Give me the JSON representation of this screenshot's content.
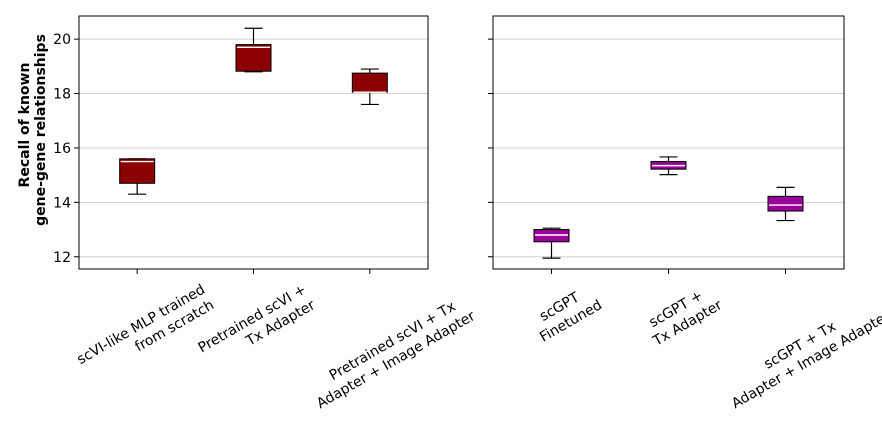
{
  "chart_data": [
    {
      "type": "box",
      "ylabel": [
        "Recall of known",
        "gene-gene relationships"
      ],
      "ylim": [
        11.55,
        20.85
      ],
      "yticks": [
        12,
        14,
        16,
        18,
        20
      ],
      "grid": "y",
      "box_color": "#8b0000",
      "median_color": "#ffffff",
      "categories": [
        [
          "scVI-like MLP trained",
          "from scratch"
        ],
        [
          "Pretrained scVI +",
          "Tx Adapter"
        ],
        [
          "Pretrained scVI + Tx",
          "Adapter + Image Adapter"
        ]
      ],
      "boxes": [
        {
          "whislo": 14.3,
          "q1": 14.7,
          "med": 15.5,
          "q3": 15.6,
          "whishi": 15.6
        },
        {
          "whislo": 18.8,
          "q1": 18.82,
          "med": 19.7,
          "q3": 19.8,
          "whishi": 20.4
        },
        {
          "whislo": 17.6,
          "q1": 18.05,
          "med": 18.05,
          "q3": 18.75,
          "whishi": 18.9
        }
      ]
    },
    {
      "type": "box",
      "ylim": [
        11.55,
        20.85
      ],
      "yticks": [
        12,
        14,
        16,
        18,
        20
      ],
      "grid": "y",
      "box_color": "#990099",
      "median_color": "#ffffff",
      "categories": [
        [
          "scGPT",
          "Finetuned"
        ],
        [
          "scGPT +",
          "Tx Adapter"
        ],
        [
          "scGPT + Tx",
          "Adapter + Image Adapter"
        ]
      ],
      "boxes": [
        {
          "whislo": 11.95,
          "q1": 12.55,
          "med": 12.8,
          "q3": 13.0,
          "whishi": 13.05
        },
        {
          "whislo": 15.02,
          "q1": 15.22,
          "med": 15.35,
          "q3": 15.5,
          "whishi": 15.67
        },
        {
          "whislo": 13.33,
          "q1": 13.68,
          "med": 13.9,
          "q3": 14.22,
          "whishi": 14.55
        }
      ]
    }
  ]
}
